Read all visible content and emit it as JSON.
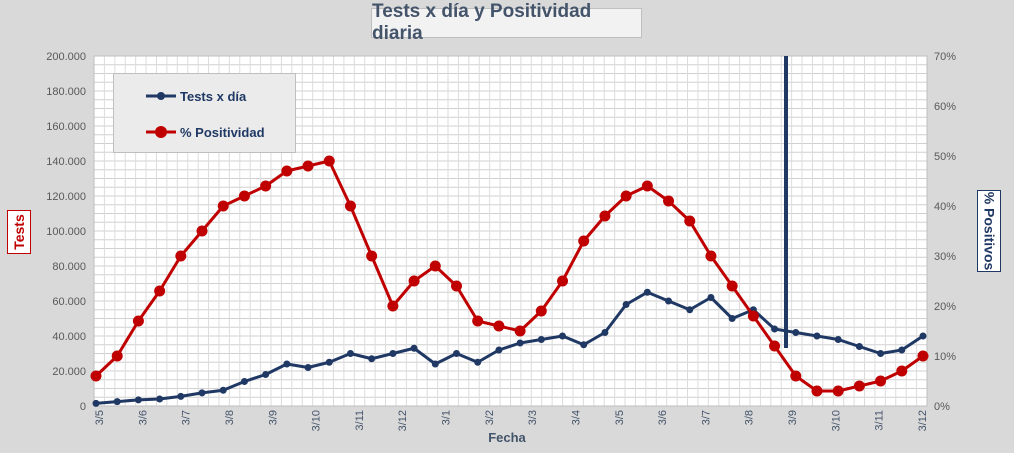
{
  "chart_data": {
    "type": "line",
    "title": "Tests x día y Positividad diaria",
    "xlabel": "Fecha",
    "ylabel_left": "Tests",
    "ylabel_right": "% Positivos",
    "x_ticks": [
      "3/5",
      "3/6",
      "3/7",
      "3/8",
      "3/9",
      "3/10",
      "3/11",
      "3/12",
      "3/1",
      "3/2",
      "3/3",
      "3/4",
      "3/5",
      "3/6",
      "3/7",
      "3/8",
      "3/9",
      "3/10",
      "3/11",
      "3/12"
    ],
    "y_left_ticks": [
      "0",
      "20.000",
      "40.000",
      "60.000",
      "80.000",
      "100.000",
      "120.000",
      "140.000",
      "160.000",
      "180.000",
      "200.000"
    ],
    "y_right_ticks": [
      "0%",
      "10%",
      "20%",
      "30%",
      "40%",
      "50%",
      "60%",
      "70%"
    ],
    "ylim_left": [
      0,
      200000
    ],
    "ylim_right": [
      0,
      70
    ],
    "grid": true,
    "legend_position": "top-left",
    "series": [
      {
        "name": "Tests x día",
        "axis": "left",
        "color": "#1f3864",
        "x_positions": [
          0,
          0.5,
          1,
          1.5,
          2,
          2.5,
          3,
          3.5,
          4,
          4.5,
          5,
          5.5,
          6,
          6.5,
          7,
          7.5,
          8,
          8.5,
          9,
          9.5,
          10,
          10.5,
          11,
          11.5,
          12,
          12.5,
          13,
          13.5,
          14,
          14.5,
          15,
          15.5,
          16,
          16.5,
          17,
          17.5,
          18,
          18.5,
          19,
          19.5
        ],
        "values": [
          1500,
          2500,
          3500,
          4000,
          5500,
          7500,
          9000,
          14000,
          18000,
          24000,
          22000,
          25000,
          30000,
          27000,
          30000,
          33000,
          24000,
          30000,
          25000,
          32000,
          36000,
          38000,
          40000,
          35000,
          42000,
          58000,
          65000,
          60000,
          55000,
          62000,
          50000,
          55000,
          44000,
          42000,
          40000,
          38000,
          34000,
          30000,
          32000,
          40000
        ]
      },
      {
        "name": "% Positividad",
        "axis": "right",
        "color": "#c00000",
        "x_positions": [
          0,
          0.5,
          1,
          1.5,
          2,
          2.5,
          3,
          3.5,
          4,
          4.5,
          5,
          5.5,
          6,
          6.5,
          7,
          7.5,
          8,
          8.5,
          9,
          9.5,
          10,
          10.5,
          11,
          11.5,
          12,
          12.5,
          13,
          13.5,
          14,
          14.5,
          15,
          15.5,
          16,
          16.5,
          17,
          17.5,
          18,
          18.5,
          19,
          19.5
        ],
        "values": [
          6,
          10,
          17,
          23,
          30,
          35,
          40,
          42,
          44,
          47,
          48,
          49,
          40,
          30,
          20,
          25,
          28,
          24,
          17,
          16,
          15,
          19,
          25,
          33,
          38,
          42,
          44,
          41,
          37,
          30,
          24,
          18,
          12,
          6,
          3,
          3,
          4,
          5,
          7,
          10
        ]
      }
    ]
  }
}
